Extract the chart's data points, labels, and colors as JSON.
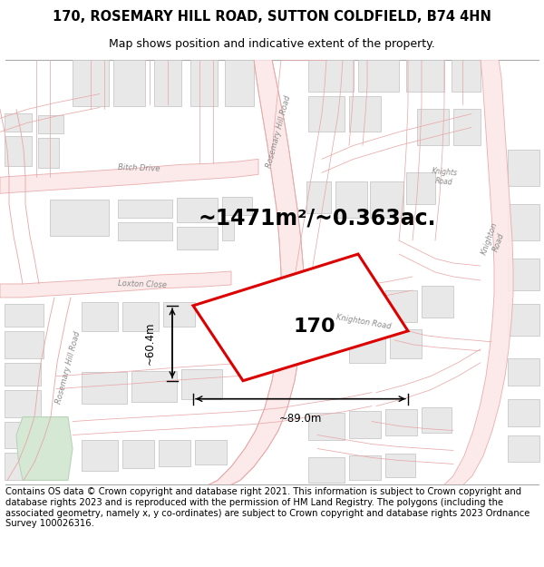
{
  "title_line1": "170, ROSEMARY HILL ROAD, SUTTON COLDFIELD, B74 4HN",
  "title_line2": "Map shows position and indicative extent of the property.",
  "area_text": "~1471m²/~0.363ac.",
  "property_number": "170",
  "dim1": "~60.4m",
  "dim2": "~89.0m",
  "footer_text": "Contains OS data © Crown copyright and database right 2021. This information is subject to Crown copyright and database rights 2023 and is reproduced with the permission of HM Land Registry. The polygons (including the associated geometry, namely x, y co-ordinates) are subject to Crown copyright and database rights 2023 Ordnance Survey 100026316.",
  "map_bg": "#f7f4f2",
  "road_color": "#e8a8a8",
  "road_lw": 0.9,
  "building_facecolor": "#e8e8e8",
  "building_edgecolor": "#c8c8c8",
  "property_color": "#dd0000",
  "title_fontsize": 10.5,
  "subtitle_fontsize": 9,
  "area_fontsize": 17,
  "footer_fontsize": 7.2,
  "label_color": "#888888",
  "label_fontsize": 6.0
}
